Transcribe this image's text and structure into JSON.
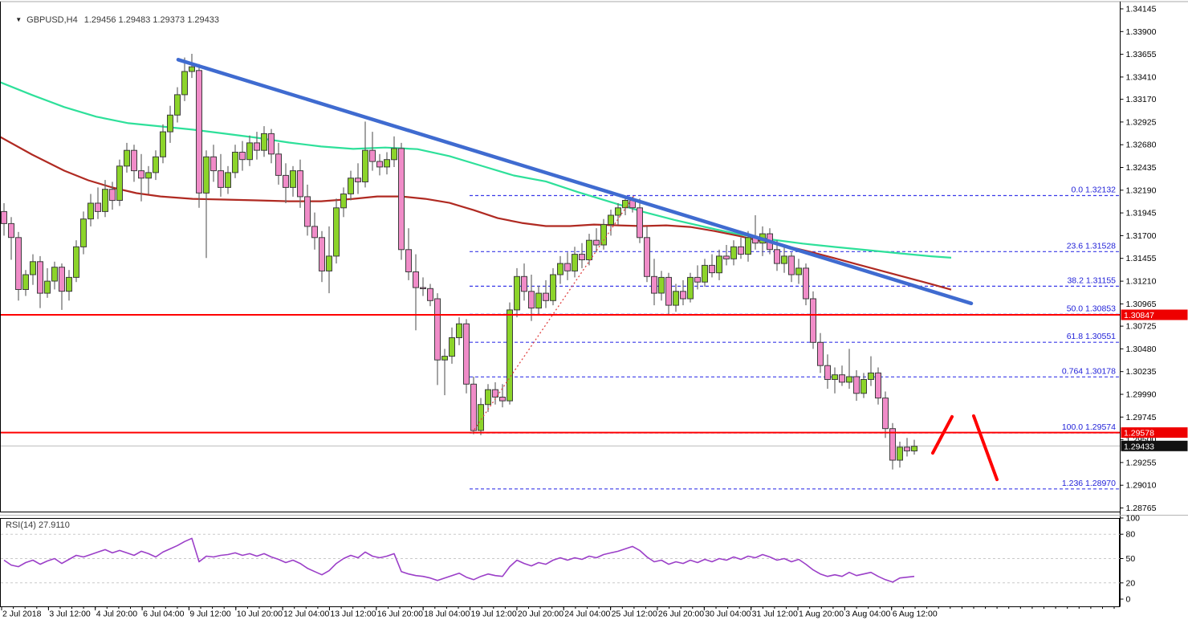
{
  "header": {
    "symbol_timeframe": "GBPUSD,H4",
    "ohlc_quote": "1.29456 1.29483 1.29373 1.29433",
    "dropdown_icon": "▼"
  },
  "price_axis": {
    "ticks": [
      1.34145,
      1.339,
      1.33655,
      1.3341,
      1.3317,
      1.32925,
      1.3268,
      1.32435,
      1.3219,
      1.31945,
      1.317,
      1.31455,
      1.3121,
      1.30965,
      1.30725,
      1.3048,
      1.30235,
      1.2999,
      1.29745,
      1.295,
      1.29255,
      1.2901,
      1.28765
    ],
    "badges": [
      {
        "value": 1.30847,
        "bg": "#ee0000",
        "fg": "#ffffff"
      },
      {
        "value": 1.29578,
        "bg": "#ee0000",
        "fg": "#ffffff"
      },
      {
        "value": 1.29433,
        "bg": "#111111",
        "fg": "#ffffff"
      }
    ]
  },
  "time_axis": {
    "labels": [
      "2 Jul 2018",
      "3 Jul 12:00",
      "4 Jul 20:00",
      "6 Jul 04:00",
      "9 Jul 12:00",
      "10 Jul 20:00",
      "12 Jul 04:00",
      "13 Jul 12:00",
      "16 Jul 20:00",
      "18 Jul 04:00",
      "19 Jul 12:00",
      "20 Jul 20:00",
      "24 Jul 04:00",
      "25 Jul 12:00",
      "26 Jul 20:00",
      "30 Jul 04:00",
      "31 Jul 12:00",
      "1 Aug 20:00",
      "3 Aug 04:00",
      "6 Aug 12:00"
    ]
  },
  "rsi": {
    "label": "RSI(14) 27.9110",
    "period": 14,
    "current": 27.911,
    "scale_labels": [
      100,
      80,
      50,
      20,
      0
    ],
    "dashed_levels": [
      80,
      50,
      20
    ],
    "values": [
      48,
      42,
      40,
      45,
      48,
      43,
      47,
      50,
      44,
      49,
      54,
      52,
      55,
      58,
      61,
      57,
      60,
      57,
      54,
      59,
      56,
      52,
      58,
      62,
      66,
      71,
      75,
      46,
      53,
      52,
      54,
      55,
      57,
      54,
      56,
      53,
      56,
      52,
      49,
      45,
      48,
      44,
      38,
      34,
      30,
      35,
      44,
      50,
      54,
      51,
      58,
      53,
      51,
      53,
      56,
      34,
      31,
      29,
      28,
      26,
      23,
      26,
      29,
      32,
      27,
      24,
      28,
      31,
      29,
      28,
      40,
      48,
      44,
      41,
      45,
      43,
      48,
      51,
      48,
      51,
      49,
      53,
      51,
      55,
      57,
      59,
      62,
      65,
      60,
      52,
      46,
      48,
      43,
      46,
      44,
      48,
      45,
      49,
      46,
      50,
      48,
      52,
      49,
      53,
      51,
      55,
      52,
      48,
      50,
      46,
      49,
      43,
      36,
      31,
      28,
      30,
      28,
      33,
      29,
      31,
      33,
      28,
      24,
      21,
      26,
      27,
      28
    ]
  },
  "chart_data": {
    "type": "candlestick",
    "symbol": "GBPUSD",
    "timeframe": "H4",
    "title": "GBPUSD,H4 1.29456 1.29483 1.29373 1.29433",
    "ylim": [
      1.28765,
      1.34145
    ],
    "current_price": 1.29433,
    "grid": false,
    "candles_ohlc": [
      [
        1.3196,
        1.3205,
        1.317,
        1.3183
      ],
      [
        1.3183,
        1.319,
        1.3144,
        1.3168
      ],
      [
        1.3168,
        1.3174,
        1.31,
        1.3112
      ],
      [
        1.3112,
        1.3133,
        1.3105,
        1.3128
      ],
      [
        1.3128,
        1.315,
        1.3117,
        1.3142
      ],
      [
        1.3142,
        1.3148,
        1.3092,
        1.3108
      ],
      [
        1.3108,
        1.3135,
        1.3103,
        1.3121
      ],
      [
        1.3121,
        1.3142,
        1.3112,
        1.3136
      ],
      [
        1.3136,
        1.314,
        1.309,
        1.311
      ],
      [
        1.311,
        1.3133,
        1.31,
        1.3125
      ],
      [
        1.3125,
        1.3165,
        1.312,
        1.3158
      ],
      [
        1.3158,
        1.3196,
        1.315,
        1.3188
      ],
      [
        1.3188,
        1.3215,
        1.318,
        1.3205
      ],
      [
        1.3205,
        1.3222,
        1.3188,
        1.3196
      ],
      [
        1.3196,
        1.323,
        1.319,
        1.322
      ],
      [
        1.322,
        1.3228,
        1.3198,
        1.3208
      ],
      [
        1.3208,
        1.3252,
        1.3202,
        1.3245
      ],
      [
        1.3245,
        1.327,
        1.3238,
        1.3262
      ],
      [
        1.3262,
        1.3268,
        1.3228,
        1.324
      ],
      [
        1.324,
        1.3258,
        1.3207,
        1.3232
      ],
      [
        1.3232,
        1.3245,
        1.3215,
        1.3238
      ],
      [
        1.3238,
        1.3262,
        1.323,
        1.3255
      ],
      [
        1.3255,
        1.329,
        1.3248,
        1.3282
      ],
      [
        1.3282,
        1.331,
        1.327,
        1.33
      ],
      [
        1.33,
        1.333,
        1.3292,
        1.3322
      ],
      [
        1.3322,
        1.3362,
        1.3315,
        1.3347
      ],
      [
        1.3347,
        1.3366,
        1.334,
        1.3352
      ],
      [
        1.3348,
        1.3355,
        1.32,
        1.3216
      ],
      [
        1.3216,
        1.3262,
        1.3146,
        1.3255
      ],
      [
        1.3255,
        1.3268,
        1.3228,
        1.324
      ],
      [
        1.324,
        1.3258,
        1.3212,
        1.3222
      ],
      [
        1.3222,
        1.3245,
        1.3215,
        1.3238
      ],
      [
        1.3238,
        1.3268,
        1.3232,
        1.326
      ],
      [
        1.326,
        1.3272,
        1.324,
        1.3252
      ],
      [
        1.3252,
        1.3278,
        1.3245,
        1.327
      ],
      [
        1.327,
        1.3282,
        1.3252,
        1.3262
      ],
      [
        1.3262,
        1.3288,
        1.3255,
        1.328
      ],
      [
        1.328,
        1.3285,
        1.3248,
        1.3258
      ],
      [
        1.3258,
        1.327,
        1.3225,
        1.3235
      ],
      [
        1.3235,
        1.3248,
        1.3205,
        1.3222
      ],
      [
        1.3222,
        1.3245,
        1.3212,
        1.324
      ],
      [
        1.324,
        1.3252,
        1.32,
        1.3212
      ],
      [
        1.3212,
        1.3225,
        1.317,
        1.318
      ],
      [
        1.318,
        1.3195,
        1.3155,
        1.3168
      ],
      [
        1.3168,
        1.3175,
        1.312,
        1.3132
      ],
      [
        1.3132,
        1.318,
        1.3108,
        1.3148
      ],
      [
        1.3148,
        1.321,
        1.314,
        1.32
      ],
      [
        1.32,
        1.3222,
        1.319,
        1.3215
      ],
      [
        1.3215,
        1.324,
        1.3208,
        1.3232
      ],
      [
        1.3232,
        1.3248,
        1.3215,
        1.3228
      ],
      [
        1.3228,
        1.3293,
        1.3222,
        1.3262
      ],
      [
        1.3262,
        1.3282,
        1.324,
        1.325
      ],
      [
        1.325,
        1.3258,
        1.3235,
        1.3244
      ],
      [
        1.3244,
        1.326,
        1.3236,
        1.3252
      ],
      [
        1.3252,
        1.3277,
        1.3244,
        1.3264
      ],
      [
        1.3264,
        1.327,
        1.3144,
        1.3155
      ],
      [
        1.3155,
        1.3178,
        1.3122,
        1.3131
      ],
      [
        1.3131,
        1.315,
        1.3068,
        1.3114
      ],
      [
        1.3114,
        1.3125,
        1.3105,
        1.3113
      ],
      [
        1.3113,
        1.3118,
        1.3094,
        1.31
      ],
      [
        1.3102,
        1.3108,
        1.3009,
        1.3036
      ],
      [
        1.3036,
        1.3048,
        1.2998,
        1.304
      ],
      [
        1.304,
        1.3071,
        1.3032,
        1.306
      ],
      [
        1.306,
        1.3082,
        1.3052,
        1.3075
      ],
      [
        1.3075,
        1.308,
        1.3,
        1.301
      ],
      [
        1.301,
        1.3018,
        1.2956,
        1.296
      ],
      [
        1.296,
        1.2995,
        1.2955,
        1.2988
      ],
      [
        1.2988,
        1.301,
        1.298,
        1.3004
      ],
      [
        1.3004,
        1.3012,
        1.2988,
        1.2996
      ],
      [
        1.2996,
        1.301,
        1.2985,
        1.2992
      ],
      [
        1.2992,
        1.3098,
        1.2988,
        1.309
      ],
      [
        1.309,
        1.3135,
        1.3082,
        1.3126
      ],
      [
        1.3126,
        1.314,
        1.31,
        1.311
      ],
      [
        1.311,
        1.3128,
        1.3078,
        1.3092
      ],
      [
        1.3092,
        1.3116,
        1.3085,
        1.3108
      ],
      [
        1.3108,
        1.3122,
        1.3092,
        1.31
      ],
      [
        1.31,
        1.3135,
        1.3095,
        1.3128
      ],
      [
        1.3128,
        1.3148,
        1.3118,
        1.314
      ],
      [
        1.314,
        1.3152,
        1.3122,
        1.3132
      ],
      [
        1.3132,
        1.3158,
        1.3125,
        1.315
      ],
      [
        1.315,
        1.3162,
        1.3135,
        1.3144
      ],
      [
        1.3144,
        1.3172,
        1.3138,
        1.3165
      ],
      [
        1.3165,
        1.3178,
        1.3152,
        1.316
      ],
      [
        1.316,
        1.3188,
        1.3155,
        1.3182
      ],
      [
        1.3182,
        1.3198,
        1.317,
        1.3192
      ],
      [
        1.3192,
        1.3205,
        1.3182,
        1.32
      ],
      [
        1.32,
        1.3213,
        1.3192,
        1.3208
      ],
      [
        1.3208,
        1.3212,
        1.3195,
        1.32
      ],
      [
        1.32,
        1.321,
        1.3162,
        1.3168
      ],
      [
        1.3168,
        1.318,
        1.312,
        1.3126
      ],
      [
        1.3126,
        1.3145,
        1.3095,
        1.3108
      ],
      [
        1.3108,
        1.3132,
        1.31,
        1.3125
      ],
      [
        1.3125,
        1.313,
        1.3085,
        1.3095
      ],
      [
        1.3095,
        1.3118,
        1.3088,
        1.311
      ],
      [
        1.311,
        1.3122,
        1.3095,
        1.3102
      ],
      [
        1.3102,
        1.313,
        1.3098,
        1.3125
      ],
      [
        1.3125,
        1.3138,
        1.3112,
        1.312
      ],
      [
        1.312,
        1.3145,
        1.3115,
        1.3138
      ],
      [
        1.3138,
        1.315,
        1.3125,
        1.313
      ],
      [
        1.313,
        1.3155,
        1.3122,
        1.3148
      ],
      [
        1.3148,
        1.316,
        1.3138,
        1.3145
      ],
      [
        1.3145,
        1.3165,
        1.3138,
        1.3158
      ],
      [
        1.3158,
        1.3168,
        1.3145,
        1.315
      ],
      [
        1.315,
        1.3175,
        1.3142,
        1.3168
      ],
      [
        1.3168,
        1.3192,
        1.3155,
        1.3162
      ],
      [
        1.3162,
        1.318,
        1.3148,
        1.3172
      ],
      [
        1.3172,
        1.3178,
        1.315,
        1.3155
      ],
      [
        1.3155,
        1.3165,
        1.3132,
        1.314
      ],
      [
        1.314,
        1.3158,
        1.313,
        1.3148
      ],
      [
        1.3148,
        1.3152,
        1.312,
        1.3128
      ],
      [
        1.3128,
        1.3145,
        1.3118,
        1.3135
      ],
      [
        1.3135,
        1.314,
        1.3095,
        1.3102
      ],
      [
        1.3102,
        1.311,
        1.3048,
        1.3055
      ],
      [
        1.3055,
        1.3065,
        1.3022,
        1.303
      ],
      [
        1.303,
        1.3042,
        1.3005,
        1.3015
      ],
      [
        1.3015,
        1.3028,
        1.3,
        1.302
      ],
      [
        1.302,
        1.303,
        1.3008,
        1.3012
      ],
      [
        1.3012,
        1.3048,
        1.3005,
        1.3018
      ],
      [
        1.3018,
        1.3025,
        1.2992,
        1.3
      ],
      [
        1.3,
        1.3022,
        1.2995,
        1.3015
      ],
      [
        1.3015,
        1.304,
        1.3008,
        1.3022
      ],
      [
        1.3022,
        1.3028,
        1.2988,
        1.2995
      ],
      [
        1.2995,
        1.3002,
        1.2952,
        1.2962
      ],
      [
        1.2962,
        1.2968,
        1.2918,
        1.2928
      ],
      [
        1.2928,
        1.2948,
        1.292,
        1.2942
      ],
      [
        1.2942,
        1.2952,
        1.2932,
        1.2938
      ],
      [
        1.2938,
        1.295,
        1.2934,
        1.2943
      ]
    ],
    "ma_fast": {
      "name": "ma-green",
      "points": [
        [
          0,
          1.33355
        ],
        [
          40,
          1.33216
        ],
        [
          80,
          1.33086
        ],
        [
          120,
          1.32982
        ],
        [
          160,
          1.32912
        ],
        [
          200,
          1.32878
        ],
        [
          240,
          1.32843
        ],
        [
          280,
          1.328
        ],
        [
          320,
          1.32756
        ],
        [
          360,
          1.32704
        ],
        [
          400,
          1.32661
        ],
        [
          440,
          1.32635
        ],
        [
          480,
          1.3265
        ],
        [
          520,
          1.32633
        ],
        [
          560,
          1.32557
        ],
        [
          600,
          1.32453
        ],
        [
          640,
          1.32349
        ],
        [
          680,
          1.32285
        ],
        [
          720,
          1.3217
        ],
        [
          760,
          1.32065
        ],
        [
          800,
          1.3196
        ],
        [
          840,
          1.3187
        ],
        [
          880,
          1.3179
        ],
        [
          920,
          1.31715
        ],
        [
          960,
          1.3166
        ],
        [
          1000,
          1.31615
        ],
        [
          1040,
          1.31578
        ],
        [
          1080,
          1.31545
        ],
        [
          1120,
          1.3151
        ],
        [
          1160,
          1.31478
        ],
        [
          1185,
          1.31462
        ]
      ]
    },
    "ma_slow": {
      "name": "ma-darkred",
      "points": [
        [
          0,
          1.32765
        ],
        [
          40,
          1.32574
        ],
        [
          80,
          1.32401
        ],
        [
          110,
          1.32297
        ],
        [
          140,
          1.32219
        ],
        [
          170,
          1.32158
        ],
        [
          200,
          1.32123
        ],
        [
          240,
          1.32097
        ],
        [
          280,
          1.32089
        ],
        [
          320,
          1.3208
        ],
        [
          360,
          1.32071
        ],
        [
          400,
          1.32071
        ],
        [
          440,
          1.32097
        ],
        [
          470,
          1.32123
        ],
        [
          500,
          1.32123
        ],
        [
          530,
          1.32097
        ],
        [
          560,
          1.32054
        ],
        [
          590,
          1.31976
        ],
        [
          620,
          1.31889
        ],
        [
          650,
          1.31837
        ],
        [
          680,
          1.31803
        ],
        [
          710,
          1.31803
        ],
        [
          740,
          1.3182
        ],
        [
          770,
          1.31811
        ],
        [
          800,
          1.31803
        ],
        [
          830,
          1.31811
        ],
        [
          860,
          1.31794
        ],
        [
          890,
          1.3175
        ],
        [
          920,
          1.31698
        ],
        [
          950,
          1.31638
        ],
        [
          980,
          1.31586
        ],
        [
          1010,
          1.31525
        ],
        [
          1040,
          1.31456
        ],
        [
          1070,
          1.31386
        ],
        [
          1100,
          1.31317
        ],
        [
          1130,
          1.31248
        ],
        [
          1160,
          1.31178
        ],
        [
          1185,
          1.31118
        ]
      ]
    },
    "trendline": {
      "x1": 222,
      "price1": 1.33597,
      "x2": 1210,
      "price2": 1.3097
    },
    "fibonacci": {
      "start": {
        "x": 588,
        "price": 1.29574
      },
      "end": {
        "x": 790,
        "price": 1.32132
      },
      "levels": [
        {
          "level": "0.0",
          "price": 1.32132
        },
        {
          "level": "23.6",
          "price": 1.31528
        },
        {
          "level": "38.2",
          "price": 1.31155
        },
        {
          "level": "50.0",
          "price": 1.30853
        },
        {
          "level": "61.8",
          "price": 1.30551
        },
        {
          "level": "0.764",
          "price": 1.30178
        },
        {
          "level": "100.0",
          "price": 1.29574
        },
        {
          "level": "1.236",
          "price": 1.2897
        }
      ]
    },
    "horizontal_lines": [
      {
        "price": 1.30847
      },
      {
        "price": 1.29578
      }
    ],
    "projection_lines": [
      {
        "x1": 1162,
        "price1": 1.29357,
        "x2": 1186,
        "price2": 1.29748
      },
      {
        "x1": 1213,
        "price1": 1.29757,
        "x2": 1242,
        "price2": 1.29071
      }
    ]
  },
  "colors": {
    "bull": "#8cd42a",
    "bear": "#f08cc8",
    "candle_border": "#3d3d3d",
    "wick": "#666666",
    "ma_fast": "#2ee09a",
    "ma_slow": "#b02a22",
    "trendline": "#3f6bd0",
    "fib_line": "#3a3ae8",
    "fib_label": "#2222d8",
    "red_line": "#ff0000",
    "current_price_line": "#bbbbbb",
    "rsi_line": "#9b3fc8",
    "axis_text": "#000000",
    "pane_border": "#000000"
  }
}
